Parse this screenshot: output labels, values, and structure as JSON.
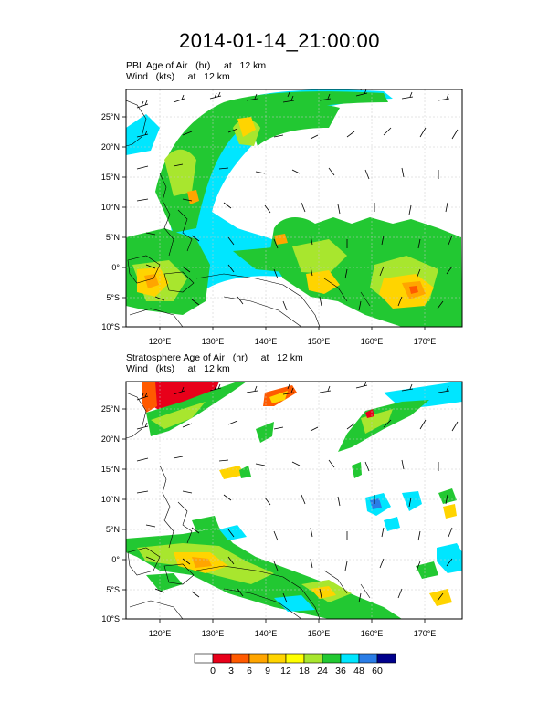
{
  "title": "2014-01-14_21:00:00",
  "panels": [
    {
      "id": "pbl",
      "line1": "PBL Age of Air   (hr)     at   12 km",
      "line2": "Wind   (kts)     at   12 km",
      "lat_labels": [
        "25°N",
        "20°N",
        "15°N",
        "10°N",
        "5°N",
        "0°",
        "5°S",
        "10°S"
      ],
      "lon_labels": [
        "120°E",
        "130°E",
        "140°E",
        "150°E",
        "160°E",
        "170°E"
      ]
    },
    {
      "id": "strat",
      "line1": "Stratosphere Age of Air   (hr)     at   12 km",
      "line2": "Wind   (kts)     at   12 km",
      "lat_labels": [
        "25°N",
        "20°N",
        "15°N",
        "10°N",
        "5°N",
        "0°",
        "5°S",
        "10°S"
      ],
      "lon_labels": [
        "120°E",
        "130°E",
        "140°E",
        "150°E",
        "160°E",
        "170°E"
      ]
    }
  ],
  "colorbar": {
    "labels": [
      "0",
      "3",
      "6",
      "9",
      "12",
      "18",
      "24",
      "36",
      "48",
      "60"
    ],
    "colors": [
      "#ffffff",
      "#e8001a",
      "#ff5a00",
      "#ffa500",
      "#ffd400",
      "#ffff00",
      "#a8e62e",
      "#22c832",
      "#00e6ff",
      "#2a7de6",
      "#00008c"
    ]
  }
}
